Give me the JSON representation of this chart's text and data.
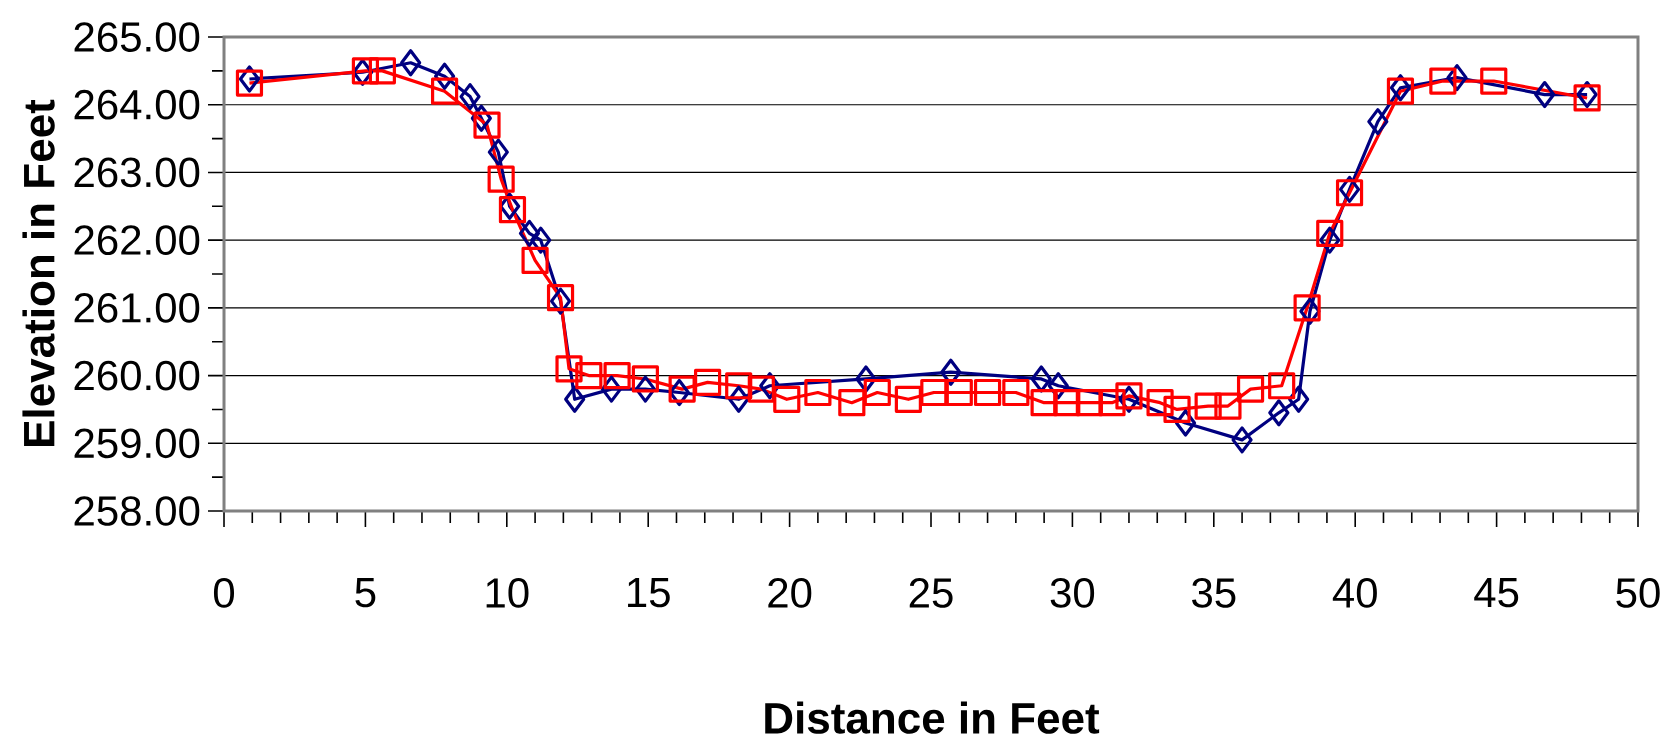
{
  "chart_data": {
    "type": "line",
    "xlabel": "Distance in Feet",
    "ylabel": "Elevation in Feet",
    "xlim": [
      0,
      50
    ],
    "xticks": [
      0,
      5,
      10,
      15,
      20,
      25,
      30,
      35,
      40,
      45,
      50
    ],
    "ylim": [
      258,
      265
    ],
    "yticks": [
      {
        "value": 258,
        "label": "258.00"
      },
      {
        "value": 259,
        "label": "259.00"
      },
      {
        "value": 260,
        "label": "260.00"
      },
      {
        "value": 261,
        "label": "261.00"
      },
      {
        "value": 262,
        "label": "262.00"
      },
      {
        "value": 263,
        "label": "263.00"
      },
      {
        "value": 264,
        "label": "264.00"
      },
      {
        "value": 265,
        "label": "265.00"
      }
    ],
    "grid": "y",
    "line_style": "solid",
    "series": [
      {
        "color": "#000080",
        "marker": "diamond",
        "x": [
          0.9,
          4.9,
          6.6,
          7.8,
          8.7,
          9.1,
          9.7,
          10.1,
          10.8,
          11.2,
          11.9,
          12.4,
          13.7,
          14.9,
          16.1,
          18.2,
          19.3,
          22.7,
          25.7,
          28.9,
          29.5,
          32.0,
          34.0,
          36.0,
          37.3,
          38.0,
          38.4,
          39.1,
          39.8,
          40.8,
          41.6,
          43.6,
          46.7,
          48.2
        ],
        "values": [
          264.38,
          264.48,
          264.62,
          264.42,
          264.12,
          263.8,
          263.3,
          262.5,
          262.1,
          262.0,
          261.1,
          259.65,
          259.8,
          259.8,
          259.75,
          259.65,
          259.85,
          259.95,
          260.05,
          259.95,
          259.85,
          259.65,
          259.3,
          259.05,
          259.45,
          259.65,
          260.95,
          262.0,
          262.75,
          263.75,
          264.25,
          264.4,
          264.15,
          264.15
        ]
      },
      {
        "color": "#ff0000",
        "marker": "square",
        "x": [
          0.9,
          5.0,
          5.6,
          7.8,
          9.3,
          9.8,
          10.2,
          11.0,
          11.9,
          12.2,
          12.9,
          13.9,
          14.9,
          16.2,
          17.1,
          18.2,
          19.0,
          19.9,
          21.0,
          22.2,
          23.1,
          24.2,
          25.1,
          26.0,
          27.0,
          28.0,
          29.0,
          29.8,
          30.6,
          31.4,
          32.0,
          33.1,
          33.7,
          34.8,
          35.5,
          36.3,
          37.4,
          38.3,
          39.1,
          39.8,
          41.6,
          43.1,
          44.9,
          48.2
        ],
        "values": [
          264.32,
          264.5,
          264.5,
          264.2,
          263.7,
          262.9,
          262.45,
          261.7,
          261.15,
          260.1,
          260.0,
          260.0,
          259.95,
          259.8,
          259.9,
          259.85,
          259.8,
          259.65,
          259.75,
          259.6,
          259.75,
          259.65,
          259.75,
          259.75,
          259.75,
          259.75,
          259.6,
          259.6,
          259.6,
          259.6,
          259.7,
          259.6,
          259.5,
          259.55,
          259.55,
          259.8,
          259.85,
          261.0,
          262.1,
          262.7,
          264.2,
          264.35,
          264.35,
          264.1
        ]
      }
    ]
  }
}
